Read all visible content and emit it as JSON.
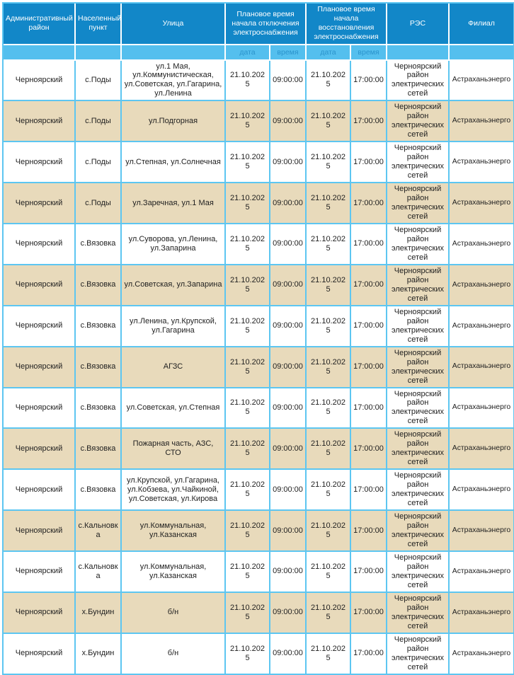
{
  "colors": {
    "header_bg": "#1287c8",
    "header_text": "#ffffff",
    "subheader_bg": "#54bfee",
    "subheader_text": "#2a93cc",
    "grid_border": "#5dc6f1",
    "row_bg": "#ffffff",
    "row_alt_bg": "#e8dabb",
    "cell_text": "#1f1f1f"
  },
  "table": {
    "headers": {
      "district": "Административный район",
      "settlement": "Населенный пункт",
      "street": "Улица",
      "outage_start": "Плановое время начала отключения электроснабжения",
      "restore_start": "Плановое время начала восстановления электроснабжения",
      "res": "РЭС",
      "branch": "Филиал"
    },
    "subheaders": {
      "date": "дата",
      "time": "время"
    },
    "rows": [
      [
        "Черноярский",
        "с.Поды",
        "ул.1 Мая, ул.Коммунистическая, ул.Советская, ул.Гагарина, ул.Ленина",
        "21.10.2025",
        "09:00:00",
        "21.10.2025",
        "17:00:00",
        "Черноярский район электрических сетей",
        "Астраханьэнерго"
      ],
      [
        "Черноярский",
        "с.Поды",
        "ул.Подгорная",
        "21.10.2025",
        "09:00:00",
        "21.10.2025",
        "17:00:00",
        "Черноярский район электрических сетей",
        "Астраханьэнерго"
      ],
      [
        "Черноярский",
        "с.Поды",
        "ул.Степная, ул.Солнечная",
        "21.10.2025",
        "09:00:00",
        "21.10.2025",
        "17:00:00",
        "Черноярский район электрических сетей",
        "Астраханьэнерго"
      ],
      [
        "Черноярский",
        "с.Поды",
        "ул.Заречная, ул.1 Мая",
        "21.10.2025",
        "09:00:00",
        "21.10.2025",
        "17:00:00",
        "Черноярский район электрических сетей",
        "Астраханьэнерго"
      ],
      [
        "Черноярский",
        "с.Вязовка",
        "ул.Суворова, ул.Ленина, ул.Запарина",
        "21.10.2025",
        "09:00:00",
        "21.10.2025",
        "17:00:00",
        "Черноярский район электрических сетей",
        "Астраханьэнерго"
      ],
      [
        "Черноярский",
        "с.Вязовка",
        "ул.Советская, ул.Запарина",
        "21.10.2025",
        "09:00:00",
        "21.10.2025",
        "17:00:00",
        "Черноярский район электрических сетей",
        "Астраханьэнерго"
      ],
      [
        "Черноярский",
        "с.Вязовка",
        "ул.Ленина, ул.Крупской, ул.Гагарина",
        "21.10.2025",
        "09:00:00",
        "21.10.2025",
        "17:00:00",
        "Черноярский район электрических сетей",
        "Астраханьэнерго"
      ],
      [
        "Черноярский",
        "с.Вязовка",
        "АГЗС",
        "21.10.2025",
        "09:00:00",
        "21.10.2025",
        "17:00:00",
        "Черноярский район электрических сетей",
        "Астраханьэнерго"
      ],
      [
        "Черноярский",
        "с.Вязовка",
        "ул.Советская, ул.Степная",
        "21.10.2025",
        "09:00:00",
        "21.10.2025",
        "17:00:00",
        "Черноярский район электрических сетей",
        "Астраханьэнерго"
      ],
      [
        "Черноярский",
        "с.Вязовка",
        "Пожарная часть, АЗС, СТО",
        "21.10.2025",
        "09:00:00",
        "21.10.2025",
        "17:00:00",
        "Черноярский район электрических сетей",
        "Астраханьэнерго"
      ],
      [
        "Черноярский",
        "с.Вязовка",
        "ул.Крупской, ул.Гагарина, ул.Кобзева, ул.Чайкиной, ул.Советская, ул.Кирова",
        "21.10.2025",
        "09:00:00",
        "21.10.2025",
        "17:00:00",
        "Черноярский район электрических сетей",
        "Астраханьэнерго"
      ],
      [
        "Черноярский",
        "с.Кальновка",
        "ул.Коммунальная, ул.Казанская",
        "21.10.2025",
        "09:00:00",
        "21.10.2025",
        "17:00:00",
        "Черноярский район электрических сетей",
        "Астраханьэнерго"
      ],
      [
        "Черноярский",
        "с.Кальновка",
        "ул.Коммунальная, ул.Казанская",
        "21.10.2025",
        "09:00:00",
        "21.10.2025",
        "17:00:00",
        "Черноярский район электрических сетей",
        "Астраханьэнерго"
      ],
      [
        "Черноярский",
        "х.Бундин",
        "б/н",
        "21.10.2025",
        "09:00:00",
        "21.10.2025",
        "17:00:00",
        "Черноярский район электрических сетей",
        "Астраханьэнерго"
      ],
      [
        "Черноярский",
        "х.Бундин",
        "б/н",
        "21.10.2025",
        "09:00:00",
        "21.10.2025",
        "17:00:00",
        "Черноярский район электрических сетей",
        "Астраханьэнерго"
      ]
    ]
  }
}
